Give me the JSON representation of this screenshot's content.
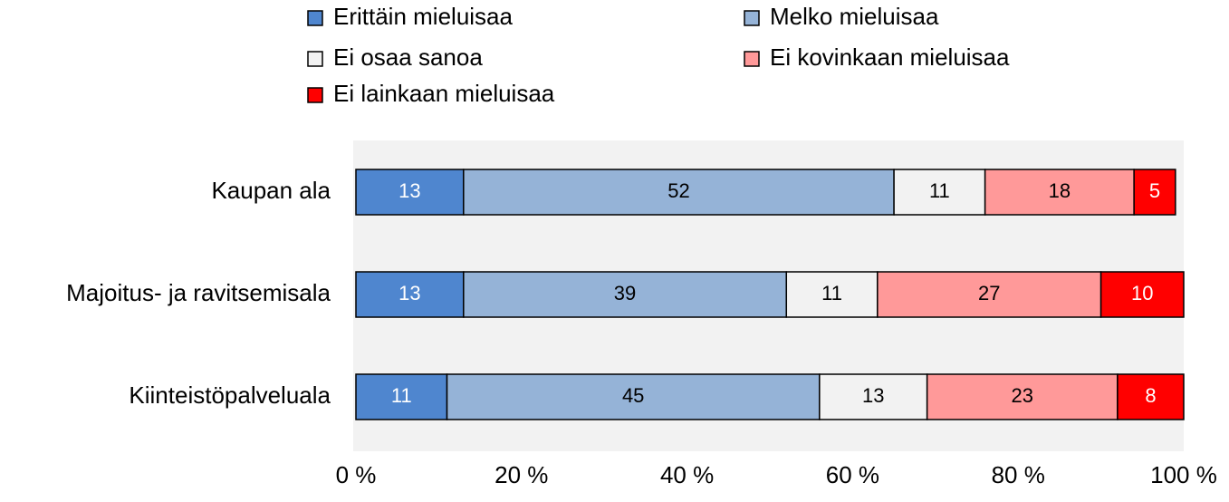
{
  "chart_data": {
    "type": "stacked-bar-horizontal",
    "categories": [
      "Kaupan ala",
      "Majoitus- ja ravitsemisala",
      "Kiinteistöpalveluala"
    ],
    "series": [
      {
        "name": "Erittäin mieluisaa",
        "color": "#4f86cf",
        "label_color": "#ffffff",
        "values": [
          13,
          13,
          11
        ]
      },
      {
        "name": "Melko mieluisaa",
        "color": "#95b3d7",
        "label_color": "#000000",
        "values": [
          52,
          39,
          45
        ]
      },
      {
        "name": "Ei osaa sanoa",
        "color": "#f2f2f2",
        "label_color": "#000000",
        "values": [
          11,
          11,
          13
        ]
      },
      {
        "name": "Ei kovinkaan mieluisaa",
        "color": "#ff9999",
        "label_color": "#000000",
        "values": [
          18,
          27,
          23
        ]
      },
      {
        "name": "Ei lainkaan mieluisaa",
        "color": "#ff0000",
        "label_color": "#ffffff",
        "values": [
          5,
          10,
          8
        ]
      }
    ],
    "xlim": [
      0,
      100
    ],
    "xticks": [
      {
        "value": 0,
        "label": "0 %"
      },
      {
        "value": 20,
        "label": "20 %"
      },
      {
        "value": 40,
        "label": "40 %"
      },
      {
        "value": 60,
        "label": "60 %"
      },
      {
        "value": 80,
        "label": "80 %"
      },
      {
        "value": 100,
        "label": "100 %"
      }
    ],
    "grid": false,
    "legend": "top"
  }
}
